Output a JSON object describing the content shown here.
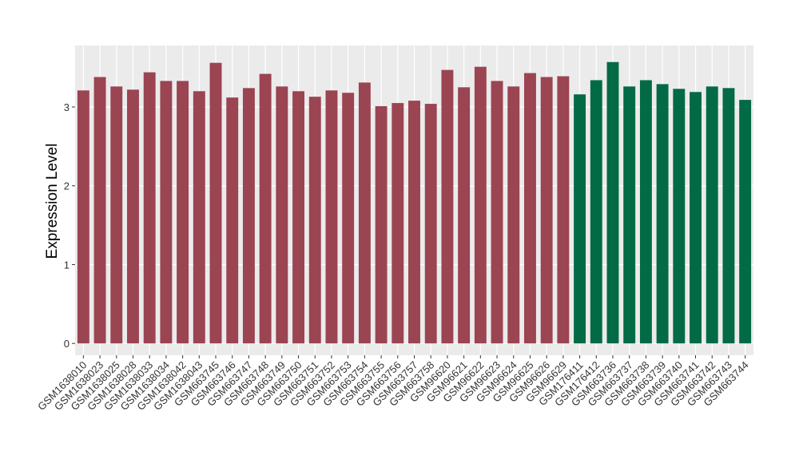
{
  "chart_data": {
    "type": "bar",
    "xlabel": "",
    "ylabel": "Expression Level",
    "ylim": [
      -0.15,
      3.78
    ],
    "yticks": [
      0,
      1,
      2,
      3
    ],
    "grid": true,
    "legend": "none",
    "colors": {
      "panel_background": "#ebebeb",
      "grid_major": "#ffffff",
      "group_1": "#9b4452",
      "group_2": "#036a46"
    },
    "categories": [
      "GSM1638010",
      "GSM1638023",
      "GSM1638025",
      "GSM1638028",
      "GSM1638033",
      "GSM1638034",
      "GSM1638042",
      "GSM1638043",
      "GSM663745",
      "GSM663746",
      "GSM663747",
      "GSM663748",
      "GSM663749",
      "GSM663750",
      "GSM663751",
      "GSM663752",
      "GSM663753",
      "GSM663754",
      "GSM663755",
      "GSM663756",
      "GSM663757",
      "GSM663758",
      "GSM96620",
      "GSM96621",
      "GSM96622",
      "GSM96623",
      "GSM96624",
      "GSM96625",
      "GSM96626",
      "GSM96629",
      "GSM176411",
      "GSM176412",
      "GSM663736",
      "GSM663737",
      "GSM663738",
      "GSM663739",
      "GSM663740",
      "GSM663741",
      "GSM663742",
      "GSM663743",
      "GSM663744"
    ],
    "values": [
      3.21,
      3.38,
      3.26,
      3.22,
      3.44,
      3.33,
      3.33,
      3.2,
      3.56,
      3.12,
      3.24,
      3.42,
      3.26,
      3.2,
      3.13,
      3.21,
      3.18,
      3.31,
      3.01,
      3.05,
      3.08,
      3.04,
      3.47,
      3.25,
      3.51,
      3.33,
      3.26,
      3.43,
      3.38,
      3.39,
      3.16,
      3.34,
      3.57,
      3.26,
      3.34,
      3.29,
      3.23,
      3.19,
      3.26,
      3.24,
      3.09
    ],
    "groups": [
      1,
      1,
      1,
      1,
      1,
      1,
      1,
      1,
      1,
      1,
      1,
      1,
      1,
      1,
      1,
      1,
      1,
      1,
      1,
      1,
      1,
      1,
      1,
      1,
      1,
      1,
      1,
      1,
      1,
      1,
      2,
      2,
      2,
      2,
      2,
      2,
      2,
      2,
      2,
      2,
      2
    ]
  }
}
